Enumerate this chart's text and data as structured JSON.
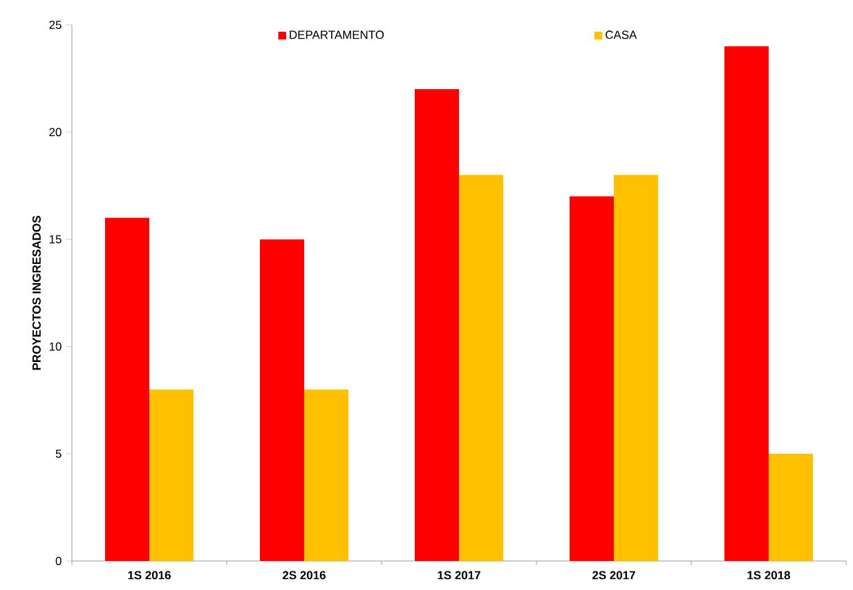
{
  "chart_data": {
    "type": "bar",
    "ylabel": "PROYECTOS INGRESADOS",
    "categories": [
      "1S 2016",
      "2S 2016",
      "1S 2017",
      "2S 2017",
      "1S 2018"
    ],
    "series": [
      {
        "name": "DEPARTAMENTO",
        "color": "#ff0000",
        "values": [
          16,
          15,
          22,
          17,
          24
        ]
      },
      {
        "name": "CASA",
        "color": "#ffc000",
        "values": [
          8,
          8,
          18,
          18,
          5
        ]
      }
    ],
    "ylim": [
      0,
      25
    ],
    "yticks": [
      0,
      5,
      10,
      15,
      20,
      25
    ],
    "grid": false,
    "legend": "top"
  }
}
